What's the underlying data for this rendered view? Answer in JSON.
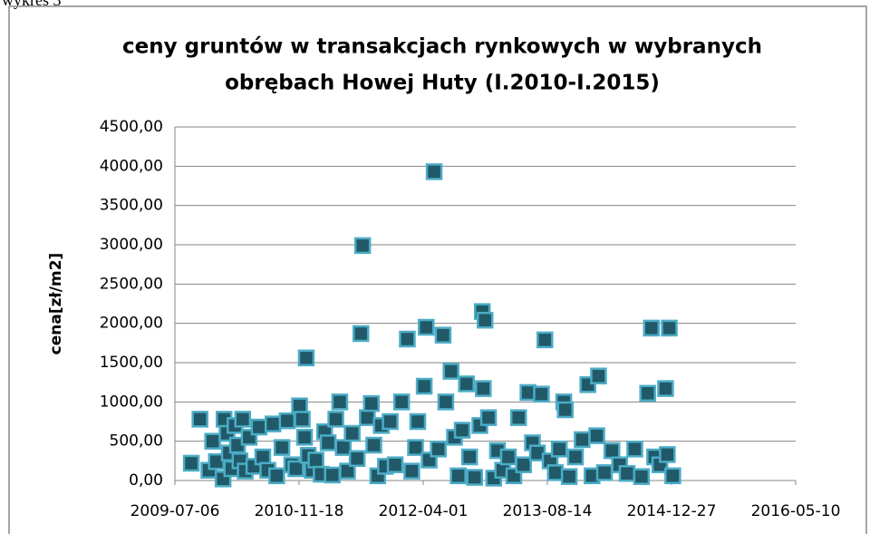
{
  "caption": "wykres 3",
  "chart_data": {
    "type": "scatter",
    "title": [
      "ceny gruntów w transakcjach rynkowych  w wybranych",
      "obrębach Howej Huty (I.2010-I.2015)"
    ],
    "y_label": "cena[zł/m2]",
    "color": "#215968",
    "edge_color": "#4bacc6",
    "grid": true,
    "xlim": [
      "2009-07-06",
      "2016-05-10"
    ],
    "xticks": [
      "2009-07-06",
      "2010-11-18",
      "2012-04-01",
      "2013-08-14",
      "2014-12-27",
      "2016-05-10"
    ],
    "ylim": [
      0,
      4500
    ],
    "yticks": [
      {
        "value": 0,
        "label": "0,00"
      },
      {
        "value": 500,
        "label": "500,00"
      },
      {
        "value": 1000,
        "label": "1000,00"
      },
      {
        "value": 1500,
        "label": "1500,00"
      },
      {
        "value": 2000,
        "label": "2000,00"
      },
      {
        "value": 2500,
        "label": "2500,00"
      },
      {
        "value": 3000,
        "label": "3000,00"
      },
      {
        "value": 3500,
        "label": "3500,00"
      },
      {
        "value": 4000,
        "label": "4000,00"
      },
      {
        "value": 4500,
        "label": "4500,00"
      }
    ],
    "x": [
      "2009-09-10",
      "2009-10-15",
      "2009-11-20",
      "2009-12-05",
      "2009-12-20",
      "2010-01-16",
      "2010-01-20",
      "2010-02-01",
      "2010-02-10",
      "2010-02-20",
      "2010-03-05",
      "2010-03-15",
      "2010-03-25",
      "2010-04-05",
      "2010-04-15",
      "2010-05-01",
      "2010-05-20",
      "2010-06-10",
      "2010-06-25",
      "2010-07-15",
      "2010-08-05",
      "2010-08-20",
      "2010-09-10",
      "2010-10-01",
      "2010-10-20",
      "2010-11-05",
      "2010-11-20",
      "2010-12-01",
      "2010-12-10",
      "2010-12-17",
      "2010-12-25",
      "2011-01-10",
      "2011-01-25",
      "2011-02-15",
      "2011-03-01",
      "2011-03-15",
      "2011-04-01",
      "2011-04-15",
      "2011-05-01",
      "2011-05-15",
      "2011-06-01",
      "2011-06-20",
      "2011-07-10",
      "2011-07-25",
      "2011-08-01",
      "2011-08-20",
      "2011-09-05",
      "2011-09-15",
      "2011-10-01",
      "2011-10-15",
      "2011-11-01",
      "2011-11-20",
      "2011-12-10",
      "2012-01-05",
      "2012-01-28",
      "2012-02-15",
      "2012-03-01",
      "2012-03-10",
      "2012-04-05",
      "2012-04-13",
      "2012-04-25",
      "2012-05-15",
      "2012-06-01",
      "2012-06-20",
      "2012-07-01",
      "2012-07-22",
      "2012-08-05",
      "2012-08-20",
      "2012-09-05",
      "2012-09-22",
      "2012-10-05",
      "2012-10-25",
      "2012-11-15",
      "2012-11-25",
      "2012-11-29",
      "2012-12-06",
      "2012-12-20",
      "2013-01-10",
      "2013-01-25",
      "2013-02-15",
      "2013-03-10",
      "2013-04-01",
      "2013-04-20",
      "2013-05-10",
      "2013-05-28",
      "2013-06-15",
      "2013-07-05",
      "2013-07-21",
      "2013-08-04",
      "2013-08-25",
      "2013-09-15",
      "2013-10-01",
      "2013-10-19",
      "2013-10-25",
      "2013-11-10",
      "2013-12-05",
      "2014-01-01",
      "2014-01-24",
      "2014-02-10",
      "2014-03-08",
      "2014-03-01",
      "2014-04-01",
      "2014-05-01",
      "2014-06-01",
      "2014-07-01",
      "2014-08-01",
      "2014-08-28",
      "2014-09-22",
      "2014-10-07",
      "2014-10-20",
      "2014-11-10",
      "2014-12-03",
      "2014-12-10",
      "2014-12-18",
      "2015-01-01"
    ],
    "values": [
      220,
      780,
      130,
      500,
      240,
      20,
      780,
      600,
      350,
      150,
      700,
      450,
      250,
      780,
      120,
      550,
      180,
      680,
      300,
      130,
      720,
      60,
      420,
      760,
      200,
      150,
      950,
      780,
      550,
      1560,
      320,
      130,
      260,
      80,
      620,
      480,
      70,
      780,
      1000,
      420,
      120,
      600,
      280,
      1870,
      2990,
      800,
      980,
      450,
      60,
      700,
      180,
      750,
      200,
      1000,
      1800,
      120,
      420,
      750,
      1200,
      1950,
      260,
      3930,
      400,
      1850,
      1000,
      1390,
      550,
      60,
      640,
      1230,
      300,
      40,
      700,
      2150,
      1170,
      2040,
      800,
      30,
      380,
      130,
      300,
      60,
      800,
      200,
      1120,
      480,
      350,
      1100,
      1790,
      250,
      100,
      400,
      1000,
      900,
      50,
      300,
      520,
      1220,
      60,
      1330,
      570,
      100,
      380,
      200,
      90,
      400,
      50,
      1110,
      1940,
      300,
      200,
      1170,
      330,
      1940,
      60
    ]
  }
}
